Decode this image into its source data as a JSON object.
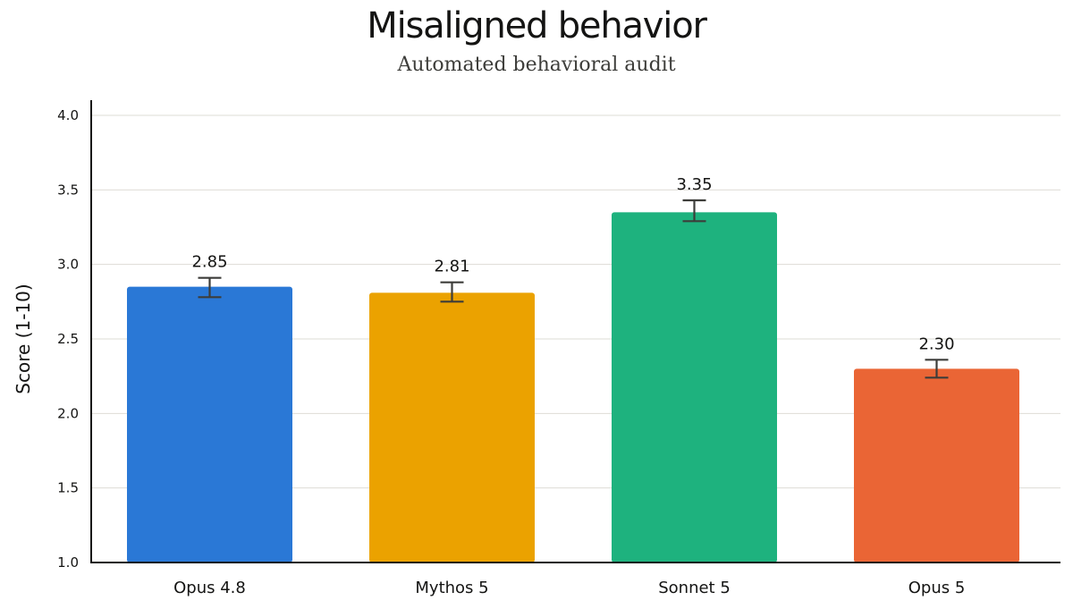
{
  "chart_data": {
    "type": "bar",
    "title": "Misaligned behavior",
    "subtitle": "Automated behavioral audit",
    "xlabel": "",
    "ylabel": "Score (1-10)",
    "ylim": [
      1.0,
      4.0
    ],
    "yticks": [
      "1.0",
      "1.5",
      "2.0",
      "2.5",
      "3.0",
      "3.5",
      "4.0"
    ],
    "grid": true,
    "categories": [
      "Opus 4.8",
      "Mythos 5",
      "Sonnet 5",
      "Opus 5"
    ],
    "values": [
      2.85,
      2.81,
      3.35,
      2.3
    ],
    "value_labels": [
      "2.85",
      "2.81",
      "3.35",
      "2.30"
    ],
    "error_low": [
      2.78,
      2.75,
      3.29,
      2.24
    ],
    "error_high": [
      2.91,
      2.88,
      3.43,
      2.36
    ],
    "colors": [
      "#2a78d6",
      "#eba200",
      "#1eb27e",
      "#ea6535"
    ]
  }
}
